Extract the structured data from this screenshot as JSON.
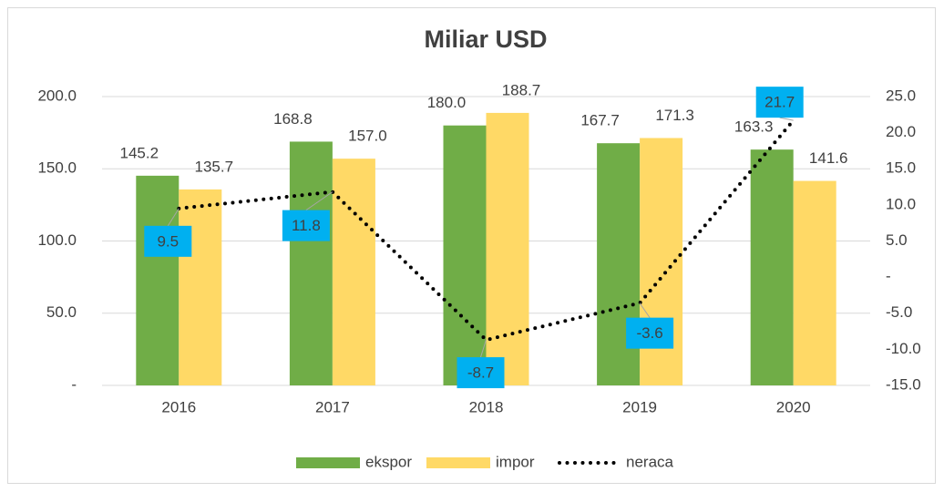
{
  "chart_data": {
    "type": "bar-line",
    "title": "Miliar USD",
    "categories": [
      "2016",
      "2017",
      "2018",
      "2019",
      "2020"
    ],
    "series": [
      {
        "name": "ekspor",
        "color": "#70ad47",
        "values": [
          145.2,
          168.8,
          180.0,
          167.7,
          163.3
        ],
        "value_labels": [
          "145.2",
          "168.8",
          "180.0",
          "167.7",
          "163.3"
        ]
      },
      {
        "name": "impor",
        "color": "#ffd966",
        "values": [
          135.7,
          157.0,
          188.7,
          171.3,
          141.6
        ],
        "value_labels": [
          "135.7",
          "157.0",
          "188.7",
          "171.3",
          "141.6"
        ]
      },
      {
        "name": "neraca",
        "color": "#000000",
        "axis": "y2",
        "values": [
          9.5,
          11.8,
          -8.7,
          -3.6,
          21.7
        ],
        "value_labels": [
          "9.5",
          "11.8",
          "-8.7",
          "-3.6",
          "21.7"
        ],
        "label_color": "#00b0f0"
      }
    ],
    "ylim": [
      0,
      200
    ],
    "yticks": [
      {
        "value": 0,
        "label": "-"
      },
      {
        "value": 50,
        "label": "50.0"
      },
      {
        "value": 100,
        "label": "100.0"
      },
      {
        "value": 150,
        "label": "150.0"
      },
      {
        "value": 200,
        "label": "200.0"
      }
    ],
    "y2lim": [
      -15,
      25
    ],
    "y2ticks": [
      {
        "value": -15,
        "label": "-15.0"
      },
      {
        "value": -10,
        "label": "-10.0"
      },
      {
        "value": -5,
        "label": "-5.0"
      },
      {
        "value": 0,
        "label": "-"
      },
      {
        "value": 5,
        "label": "5.0"
      },
      {
        "value": 10,
        "label": "10.0"
      },
      {
        "value": 15,
        "label": "15.0"
      },
      {
        "value": 20,
        "label": "20.0"
      },
      {
        "value": 25,
        "label": "25.0"
      }
    ],
    "grid": true,
    "legend": "bottom"
  }
}
